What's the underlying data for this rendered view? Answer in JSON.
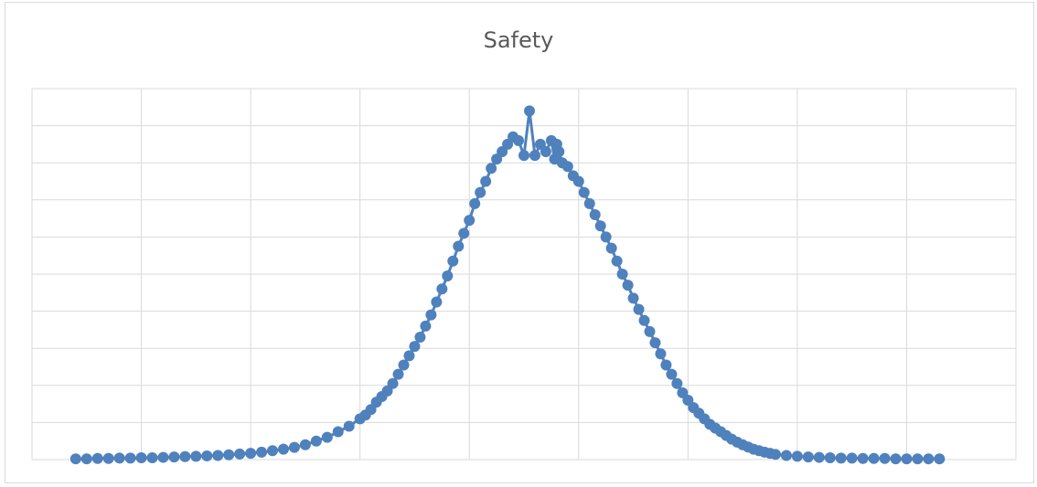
{
  "chart_data": {
    "type": "line",
    "title": "Safety",
    "xlabel": "",
    "ylabel": "",
    "grid": true,
    "legend": "none",
    "xlim": [
      0,
      9
    ],
    "ylim": [
      0,
      10
    ],
    "series": [
      {
        "color": "#4f81bd",
        "marker": "circle",
        "x": [
          0.4,
          0.5,
          0.6,
          0.7,
          0.8,
          0.9,
          1.0,
          1.1,
          1.2,
          1.3,
          1.4,
          1.5,
          1.6,
          1.7,
          1.8,
          1.9,
          2.0,
          2.1,
          2.2,
          2.3,
          2.4,
          2.5,
          2.6,
          2.7,
          2.8,
          2.9,
          3.0,
          3.05,
          3.1,
          3.15,
          3.2,
          3.25,
          3.3,
          3.35,
          3.4,
          3.45,
          3.5,
          3.55,
          3.6,
          3.65,
          3.7,
          3.75,
          3.8,
          3.85,
          3.9,
          3.95,
          4.0,
          4.05,
          4.1,
          4.15,
          4.2,
          4.25,
          4.3,
          4.35,
          4.4,
          4.45,
          4.5,
          4.55,
          4.6,
          4.65,
          4.7,
          4.75,
          4.78,
          4.8,
          4.82,
          4.85,
          4.9,
          4.95,
          5.0,
          5.05,
          5.1,
          5.15,
          5.2,
          5.25,
          5.3,
          5.35,
          5.4,
          5.45,
          5.5,
          5.55,
          5.6,
          5.65,
          5.7,
          5.75,
          5.8,
          5.85,
          5.9,
          5.95,
          6.0,
          6.05,
          6.1,
          6.15,
          6.2,
          6.25,
          6.3,
          6.35,
          6.4,
          6.45,
          6.5,
          6.55,
          6.6,
          6.65,
          6.7,
          6.75,
          6.8,
          6.9,
          7.0,
          7.1,
          7.2,
          7.3,
          7.4,
          7.5,
          7.6,
          7.7,
          7.8,
          7.9,
          8.0,
          8.1,
          8.2,
          8.3
        ],
        "y": [
          0.02,
          0.02,
          0.03,
          0.03,
          0.04,
          0.04,
          0.05,
          0.05,
          0.06,
          0.07,
          0.08,
          0.09,
          0.1,
          0.11,
          0.13,
          0.15,
          0.17,
          0.2,
          0.24,
          0.28,
          0.33,
          0.4,
          0.5,
          0.6,
          0.75,
          0.9,
          1.1,
          1.2,
          1.35,
          1.55,
          1.7,
          1.85,
          2.05,
          2.3,
          2.55,
          2.8,
          3.05,
          3.3,
          3.6,
          3.9,
          4.25,
          4.6,
          4.95,
          5.35,
          5.75,
          6.1,
          6.45,
          6.9,
          7.2,
          7.5,
          7.85,
          8.1,
          8.3,
          8.5,
          8.7,
          8.6,
          8.2,
          9.4,
          8.2,
          8.5,
          8.3,
          8.6,
          8.1,
          8.5,
          8.3,
          8.0,
          7.9,
          7.65,
          7.5,
          7.2,
          6.9,
          6.6,
          6.3,
          6.0,
          5.7,
          5.35,
          5.0,
          4.7,
          4.35,
          4.05,
          3.75,
          3.45,
          3.15,
          2.85,
          2.55,
          2.3,
          2.05,
          1.8,
          1.6,
          1.4,
          1.25,
          1.1,
          0.95,
          0.85,
          0.75,
          0.65,
          0.55,
          0.47,
          0.4,
          0.34,
          0.28,
          0.24,
          0.2,
          0.17,
          0.14,
          0.11,
          0.09,
          0.07,
          0.06,
          0.05,
          0.04,
          0.04,
          0.03,
          0.03,
          0.03,
          0.02,
          0.02,
          0.02,
          0.02,
          0.02
        ]
      }
    ]
  }
}
